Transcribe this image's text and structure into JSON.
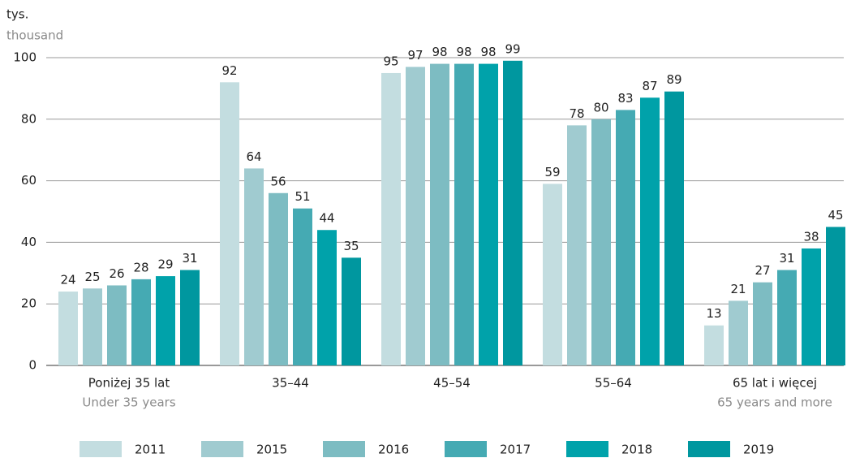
{
  "chart_data": {
    "type": "bar",
    "y_label_lines": [
      "tys.",
      "thousand"
    ],
    "categories": [
      "Poniżej 35 lat",
      "35–44",
      "45–54",
      "55–64",
      "65 lat i więcej"
    ],
    "category_subtitles": [
      "Under 35 years",
      null,
      null,
      null,
      "65 years and more"
    ],
    "series": [
      {
        "name": "2011",
        "color": "#c3dde0",
        "values": [
          24,
          92,
          95,
          59,
          13
        ]
      },
      {
        "name": "2015",
        "color": "#a0cbd0",
        "values": [
          25,
          64,
          97,
          78,
          21
        ]
      },
      {
        "name": "2016",
        "color": "#7dbcc2",
        "values": [
          26,
          56,
          98,
          80,
          27
        ]
      },
      {
        "name": "2017",
        "color": "#45aab3",
        "values": [
          28,
          51,
          98,
          83,
          31
        ]
      },
      {
        "name": "2018",
        "color": "#00a2aa",
        "values": [
          29,
          44,
          98,
          87,
          38
        ]
      },
      {
        "name": "2019",
        "color": "#00979f",
        "values": [
          31,
          35,
          99,
          89,
          45
        ]
      }
    ],
    "ylim": [
      0,
      100
    ],
    "yticks": [
      0,
      20,
      40,
      60,
      80,
      100
    ],
    "grid": true,
    "legend": "bottom"
  }
}
